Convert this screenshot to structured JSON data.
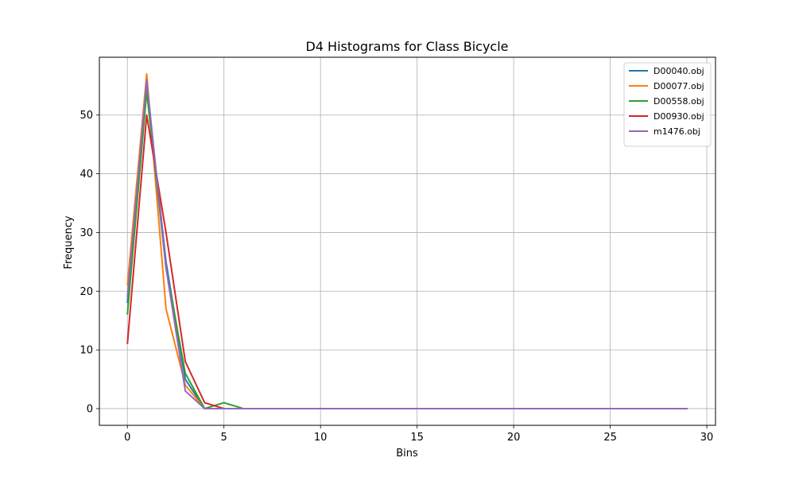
{
  "chart_data": {
    "type": "line",
    "title": "D4 Histograms for Class Bicycle",
    "xlabel": "Bins",
    "ylabel": "Frequency",
    "xlim": [
      -1.45,
      30.45
    ],
    "ylim": [
      -2.85,
      59.85
    ],
    "xticks": [
      0,
      5,
      10,
      15,
      20,
      25,
      30
    ],
    "yticks": [
      0,
      10,
      20,
      30,
      40,
      50
    ],
    "grid": true,
    "legend_position": "top-right",
    "x": [
      0,
      1,
      2,
      3,
      4,
      5,
      6,
      7,
      8,
      9,
      10,
      11,
      12,
      13,
      14,
      15,
      16,
      17,
      18,
      19,
      20,
      21,
      22,
      23,
      24,
      25,
      26,
      27,
      28,
      29
    ],
    "series": [
      {
        "name": "D00040.obj",
        "color": "#1f77b4",
        "values": [
          18,
          55,
          25,
          5,
          0,
          0,
          0,
          0,
          0,
          0,
          0,
          0,
          0,
          0,
          0,
          0,
          0,
          0,
          0,
          0,
          0,
          0,
          0,
          0,
          0,
          0,
          0,
          0,
          0,
          0
        ]
      },
      {
        "name": "D00077.obj",
        "color": "#ff7f0e",
        "values": [
          21,
          57,
          17,
          4,
          0,
          0,
          0,
          0,
          0,
          0,
          0,
          0,
          0,
          0,
          0,
          0,
          0,
          0,
          0,
          0,
          0,
          0,
          0,
          0,
          0,
          0,
          0,
          0,
          0,
          0
        ]
      },
      {
        "name": "D00558.obj",
        "color": "#2ca02c",
        "values": [
          16,
          54,
          24,
          6,
          0,
          1,
          0,
          0,
          0,
          0,
          0,
          0,
          0,
          0,
          0,
          0,
          0,
          0,
          0,
          0,
          0,
          0,
          0,
          0,
          0,
          0,
          0,
          0,
          0,
          0
        ]
      },
      {
        "name": "D00930.obj",
        "color": "#d62728",
        "values": [
          11,
          50,
          30,
          8,
          1,
          0,
          0,
          0,
          0,
          0,
          0,
          0,
          0,
          0,
          0,
          0,
          0,
          0,
          0,
          0,
          0,
          0,
          0,
          0,
          0,
          0,
          0,
          0,
          0,
          0
        ]
      },
      {
        "name": "m1476.obj",
        "color": "#9467bd",
        "values": [
          19,
          56,
          24,
          3,
          0,
          0,
          0,
          0,
          0,
          0,
          0,
          0,
          0,
          0,
          0,
          0,
          0,
          0,
          0,
          0,
          0,
          0,
          0,
          0,
          0,
          0,
          0,
          0,
          0,
          0
        ]
      }
    ]
  }
}
